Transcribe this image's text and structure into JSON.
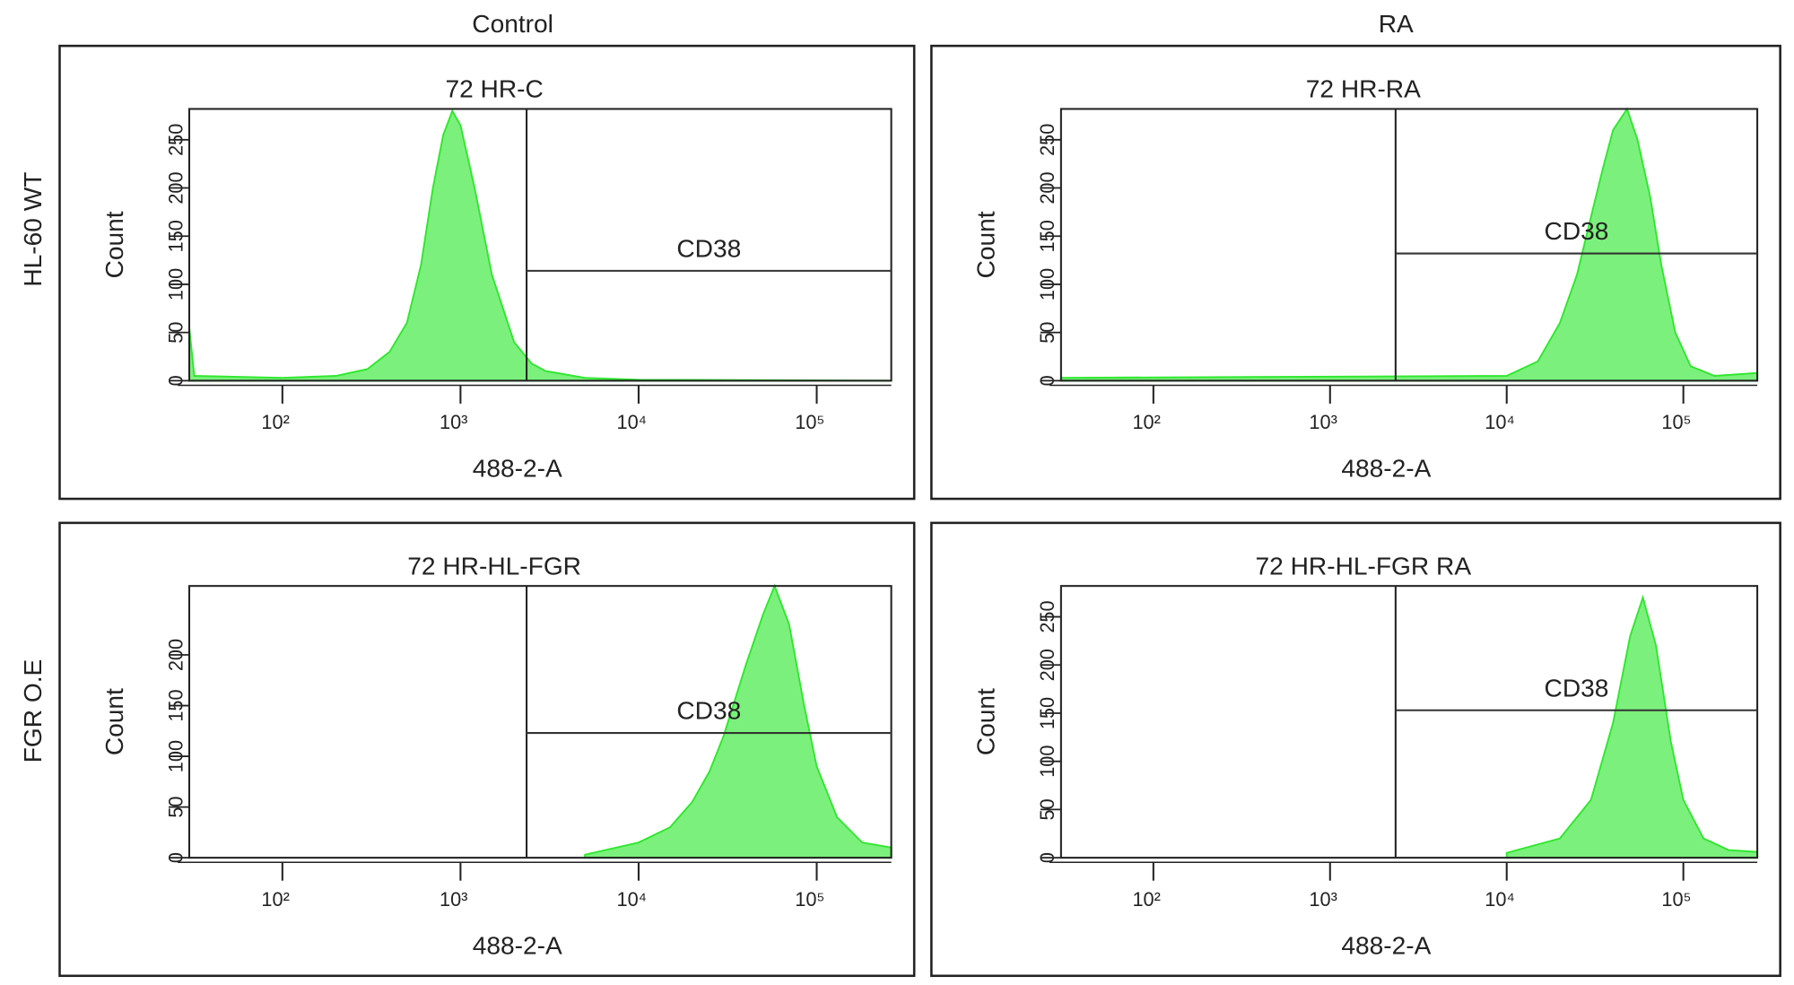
{
  "column_labels": [
    "Control",
    "RA"
  ],
  "row_labels": [
    "HL-60 WT",
    "FGR  O.E"
  ],
  "chart_data": [
    {
      "type": "area",
      "title": "72 HR-C",
      "xlabel": "488-2-A",
      "ylabel": "Count",
      "color": "#7cf07c",
      "log_x": true,
      "xlim": [
        30,
        262144
      ],
      "xticks": [
        {
          "value": 100,
          "label": "10²"
        },
        {
          "value": 1000,
          "label": "10³"
        },
        {
          "value": 10000,
          "label": "10⁴"
        },
        {
          "value": 100000,
          "label": "10⁵"
        }
      ],
      "ylim": [
        0,
        282
      ],
      "yticks": [
        0,
        50,
        100,
        150,
        200,
        250
      ],
      "gate": {
        "label": "CD38",
        "start": 2350,
        "level": 114
      },
      "x": [
        30,
        32,
        100,
        200,
        300,
        400,
        500,
        600,
        700,
        800,
        900,
        1000,
        1200,
        1500,
        2000,
        2500,
        3000,
        5000,
        10000,
        262144
      ],
      "values": [
        55,
        5,
        3,
        5,
        12,
        30,
        60,
        120,
        200,
        255,
        280,
        265,
        200,
        110,
        40,
        18,
        10,
        3,
        1,
        0
      ]
    },
    {
      "type": "area",
      "title": "72 HR-RA",
      "xlabel": "488-2-A",
      "ylabel": "Count",
      "color": "#7cf07c",
      "log_x": true,
      "xlim": [
        30,
        262144
      ],
      "xticks": [
        {
          "value": 100,
          "label": "10²"
        },
        {
          "value": 1000,
          "label": "10³"
        },
        {
          "value": 10000,
          "label": "10⁴"
        },
        {
          "value": 100000,
          "label": "10⁵"
        }
      ],
      "ylim": [
        0,
        282
      ],
      "yticks": [
        0,
        50,
        100,
        150,
        200,
        250
      ],
      "gate": {
        "label": "CD38",
        "start": 2350,
        "level": 132
      },
      "x": [
        30,
        10000,
        15000,
        20000,
        25000,
        30000,
        35000,
        40000,
        48000,
        55000,
        65000,
        75000,
        90000,
        110000,
        150000,
        262144
      ],
      "values": [
        3,
        5,
        20,
        60,
        110,
        170,
        220,
        260,
        282,
        250,
        190,
        120,
        50,
        15,
        5,
        8
      ]
    },
    {
      "type": "area",
      "title": "72 HR-HL-FGR",
      "xlabel": "488-2-A",
      "ylabel": "Count",
      "color": "#7cf07c",
      "log_x": true,
      "xlim": [
        30,
        262144
      ],
      "xticks": [
        {
          "value": 100,
          "label": "10²"
        },
        {
          "value": 1000,
          "label": "10³"
        },
        {
          "value": 10000,
          "label": "10⁴"
        },
        {
          "value": 100000,
          "label": "10⁵"
        }
      ],
      "ylim": [
        0,
        268
      ],
      "yticks": [
        0,
        50,
        100,
        150,
        200
      ],
      "gate": {
        "label": "CD38",
        "start": 2350,
        "level": 123
      },
      "x": [
        5000,
        10000,
        15000,
        20000,
        25000,
        30000,
        40000,
        50000,
        58000,
        70000,
        85000,
        100000,
        130000,
        180000,
        262144
      ],
      "values": [
        3,
        15,
        30,
        55,
        85,
        120,
        190,
        240,
        268,
        230,
        150,
        90,
        40,
        15,
        10
      ]
    },
    {
      "type": "area",
      "title": "72 HR-HL-FGR RA",
      "xlabel": "488-2-A",
      "ylabel": "Count",
      "color": "#7cf07c",
      "log_x": true,
      "xlim": [
        30,
        262144
      ],
      "xticks": [
        {
          "value": 100,
          "label": "10²"
        },
        {
          "value": 1000,
          "label": "10³"
        },
        {
          "value": 10000,
          "label": "10⁴"
        },
        {
          "value": 100000,
          "label": "10⁵"
        }
      ],
      "ylim": [
        0,
        282
      ],
      "yticks": [
        0,
        50,
        100,
        150,
        200,
        250
      ],
      "gate": {
        "label": "CD38",
        "start": 2350,
        "level": 153
      },
      "x": [
        10000,
        20000,
        30000,
        40000,
        50000,
        59000,
        70000,
        85000,
        100000,
        130000,
        180000,
        262144
      ],
      "values": [
        5,
        20,
        60,
        140,
        230,
        270,
        220,
        120,
        60,
        20,
        8,
        6
      ]
    }
  ]
}
